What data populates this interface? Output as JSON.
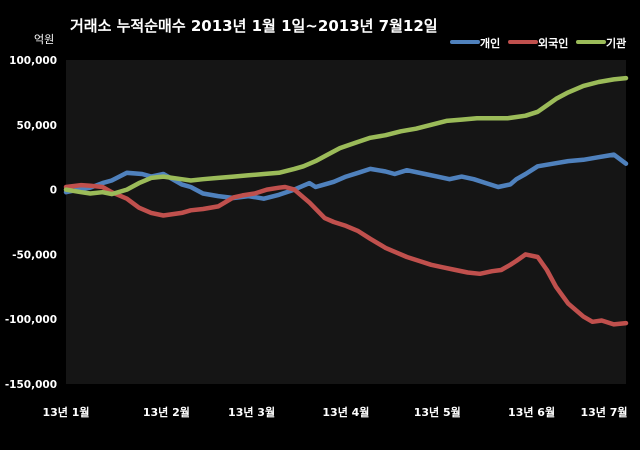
{
  "chart_data": {
    "type": "line",
    "title": "거래소 누적순매수 2013년 1월 1일~2013년 7월12일",
    "unit_label": "억원",
    "ylim": [
      -150000,
      100000
    ],
    "y_ticks": [
      100000,
      50000,
      0,
      -50000,
      -100000,
      -150000
    ],
    "y_tick_labels": [
      "100,000",
      "50,000",
      "0",
      "-50,000",
      "-100,000",
      "-150,000"
    ],
    "x_range": [
      0,
      184
    ],
    "x_ticks": [
      0,
      31,
      59,
      90,
      120,
      151,
      181
    ],
    "x_tick_labels": [
      "13년 1월",
      "13년 2월",
      "13년 3월",
      "13년 4월",
      "13년 5월",
      "13년 6월",
      "13년 7월"
    ],
    "grid": false,
    "legend_position": "top-right",
    "series": [
      {
        "name": "개인",
        "color": "#4f81bd",
        "x": [
          0,
          5,
          8,
          12,
          15,
          20,
          25,
          28,
          32,
          38,
          41,
          45,
          50,
          55,
          60,
          65,
          70,
          75,
          80,
          82,
          85,
          88,
          92,
          96,
          100,
          105,
          108,
          112,
          118,
          122,
          126,
          130,
          134,
          138,
          142,
          146,
          148,
          151,
          155,
          160,
          165,
          170,
          175,
          180,
          184
        ],
        "y": [
          -2000,
          500,
          1500,
          5000,
          7000,
          13000,
          12000,
          10000,
          12000,
          4000,
          2000,
          -3000,
          -5000,
          -6500,
          -5000,
          -7000,
          -4000,
          0,
          5000,
          2000,
          4000,
          6000,
          10000,
          13000,
          16000,
          14000,
          12000,
          15000,
          12000,
          10000,
          8000,
          10000,
          8000,
          5000,
          2000,
          4000,
          8000,
          12000,
          18000,
          20000,
          22000,
          23000,
          25000,
          27000,
          20000
        ]
      },
      {
        "name": "외국인",
        "color": "#c0504d",
        "x": [
          0,
          5,
          8,
          12,
          15,
          20,
          24,
          28,
          32,
          38,
          41,
          45,
          50,
          55,
          58,
          62,
          66,
          70,
          72,
          75,
          80,
          85,
          88,
          92,
          96,
          100,
          105,
          108,
          112,
          116,
          120,
          124,
          128,
          132,
          136,
          140,
          143,
          146,
          148,
          151,
          155,
          158,
          161,
          165,
          170,
          173,
          176,
          180,
          184
        ],
        "y": [
          2000,
          3500,
          3000,
          2000,
          -2000,
          -7000,
          -14000,
          -18000,
          -20000,
          -18000,
          -16000,
          -15000,
          -13000,
          -6000,
          -4500,
          -3000,
          0,
          1500,
          2000,
          0,
          -10000,
          -22000,
          -25000,
          -28000,
          -32000,
          -38000,
          -45000,
          -48000,
          -52000,
          -55000,
          -58000,
          -60000,
          -62000,
          -64000,
          -65000,
          -63000,
          -62000,
          -58000,
          -55000,
          -50000,
          -52000,
          -62000,
          -75000,
          -88000,
          -98000,
          -102000,
          -101000,
          -104000,
          -103000
        ]
      },
      {
        "name": "기관",
        "color": "#9bbb59",
        "x": [
          0,
          5,
          8,
          12,
          15,
          20,
          24,
          28,
          32,
          38,
          41,
          45,
          50,
          55,
          60,
          65,
          70,
          75,
          78,
          82,
          86,
          90,
          95,
          100,
          105,
          110,
          115,
          120,
          125,
          130,
          135,
          140,
          145,
          148,
          151,
          155,
          158,
          161,
          165,
          170,
          175,
          180,
          184
        ],
        "y": [
          0,
          -2000,
          -3000,
          -2000,
          -3500,
          0,
          5000,
          9000,
          10000,
          8000,
          7000,
          8000,
          9000,
          10000,
          11000,
          12000,
          13000,
          16000,
          18000,
          22000,
          27000,
          32000,
          36000,
          40000,
          42000,
          45000,
          47000,
          50000,
          53000,
          54000,
          55000,
          55000,
          55000,
          56000,
          57000,
          60000,
          65000,
          70000,
          75000,
          80000,
          83000,
          85000,
          86000
        ]
      }
    ]
  }
}
